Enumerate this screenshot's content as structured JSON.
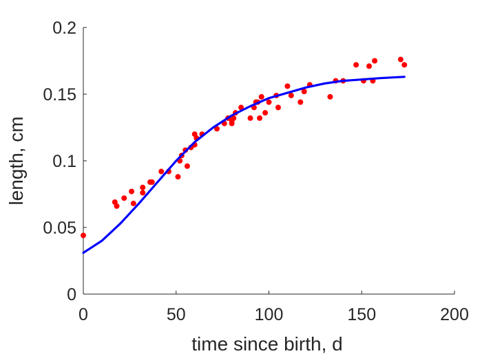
{
  "chart_data": {
    "type": "scatter",
    "xlabel": "time since birth, d",
    "ylabel": "length, cm",
    "xlim": [
      0,
      200
    ],
    "ylim": [
      0,
      0.2
    ],
    "xticks": [
      "0",
      "50",
      "100",
      "150",
      "200"
    ],
    "yticks": [
      "0",
      "0.05",
      "0.1",
      "0.15",
      "0.2"
    ],
    "grid": false,
    "series": [
      {
        "kind": "scatter",
        "color": "#ff0000",
        "points": [
          [
            0,
            0.044
          ],
          [
            17,
            0.069
          ],
          [
            18,
            0.066
          ],
          [
            22,
            0.072
          ],
          [
            26,
            0.077
          ],
          [
            27,
            0.068
          ],
          [
            32,
            0.08
          ],
          [
            32,
            0.076
          ],
          [
            36,
            0.084
          ],
          [
            37,
            0.084
          ],
          [
            42,
            0.092
          ],
          [
            46,
            0.092
          ],
          [
            51,
            0.088
          ],
          [
            52,
            0.1
          ],
          [
            53,
            0.104
          ],
          [
            55,
            0.108
          ],
          [
            56,
            0.096
          ],
          [
            58,
            0.11
          ],
          [
            60,
            0.12
          ],
          [
            60,
            0.112
          ],
          [
            61,
            0.117
          ],
          [
            64,
            0.12
          ],
          [
            72,
            0.124
          ],
          [
            76,
            0.128
          ],
          [
            78,
            0.132
          ],
          [
            80,
            0.13
          ],
          [
            80,
            0.128
          ],
          [
            81,
            0.132
          ],
          [
            82,
            0.136
          ],
          [
            85,
            0.14
          ],
          [
            90,
            0.132
          ],
          [
            92,
            0.14
          ],
          [
            93,
            0.144
          ],
          [
            94,
            0.144
          ],
          [
            95,
            0.132
          ],
          [
            96,
            0.148
          ],
          [
            98,
            0.136
          ],
          [
            100,
            0.144
          ],
          [
            104,
            0.149
          ],
          [
            105,
            0.14
          ],
          [
            110,
            0.156
          ],
          [
            112,
            0.149
          ],
          [
            117,
            0.144
          ],
          [
            119,
            0.152
          ],
          [
            122,
            0.157
          ],
          [
            133,
            0.148
          ],
          [
            136,
            0.16
          ],
          [
            140,
            0.16
          ],
          [
            147,
            0.172
          ],
          [
            151,
            0.16
          ],
          [
            154,
            0.171
          ],
          [
            156,
            0.16
          ],
          [
            157,
            0.175
          ],
          [
            171,
            0.176
          ],
          [
            173,
            0.172
          ]
        ]
      },
      {
        "kind": "line",
        "color": "#0000ff",
        "x": [
          0,
          10,
          20,
          30,
          40,
          50,
          60,
          70,
          80,
          90,
          100,
          110,
          120,
          130,
          140,
          150,
          160,
          173
        ],
        "y": [
          0.031,
          0.04,
          0.053,
          0.068,
          0.084,
          0.1,
          0.114,
          0.125,
          0.134,
          0.141,
          0.147,
          0.151,
          0.155,
          0.158,
          0.16,
          0.161,
          0.162,
          0.163
        ]
      }
    ]
  }
}
